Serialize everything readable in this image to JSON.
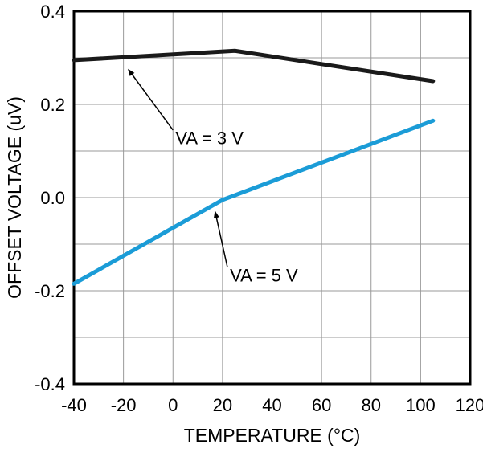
{
  "chart_data": {
    "type": "line",
    "title": "",
    "xlabel": "TEMPERATURE (°C)",
    "ylabel": "OFFSET VOLTAGE (uV)",
    "xlim": [
      -40,
      120
    ],
    "ylim": [
      -0.4,
      0.4
    ],
    "x_ticks": [
      -40,
      -20,
      0,
      20,
      40,
      60,
      80,
      100,
      120
    ],
    "y_ticks": [
      -0.4,
      -0.2,
      0,
      0.2,
      0.4
    ],
    "x_grid_step": 20,
    "y_grid_step": 0.1,
    "grid": true,
    "legend_position": "none",
    "colors": {
      "background": "#ffffff",
      "grid": "#999999",
      "axis": "#000000",
      "text": "#000000"
    },
    "series": [
      {
        "name": "VA = 3 V",
        "color": "#1a1a1a",
        "x": [
          -40,
          25,
          105
        ],
        "y": [
          0.295,
          0.315,
          0.25
        ]
      },
      {
        "name": "VA = 5 V",
        "color": "#1b9cd7",
        "x": [
          -40,
          20,
          105
        ],
        "y": [
          -0.185,
          -0.005,
          0.165
        ]
      }
    ],
    "annotations": [
      {
        "text": "VA = 3 V",
        "tx": 1,
        "ty": 0.115,
        "tail_x": 0,
        "tail_y": 0.145,
        "head_x": -18,
        "head_y": 0.275
      },
      {
        "text": "VA = 5 V",
        "tx": 23,
        "ty": -0.18,
        "tail_x": 22,
        "tail_y": -0.15,
        "head_x": 17,
        "head_y": -0.03
      }
    ]
  }
}
